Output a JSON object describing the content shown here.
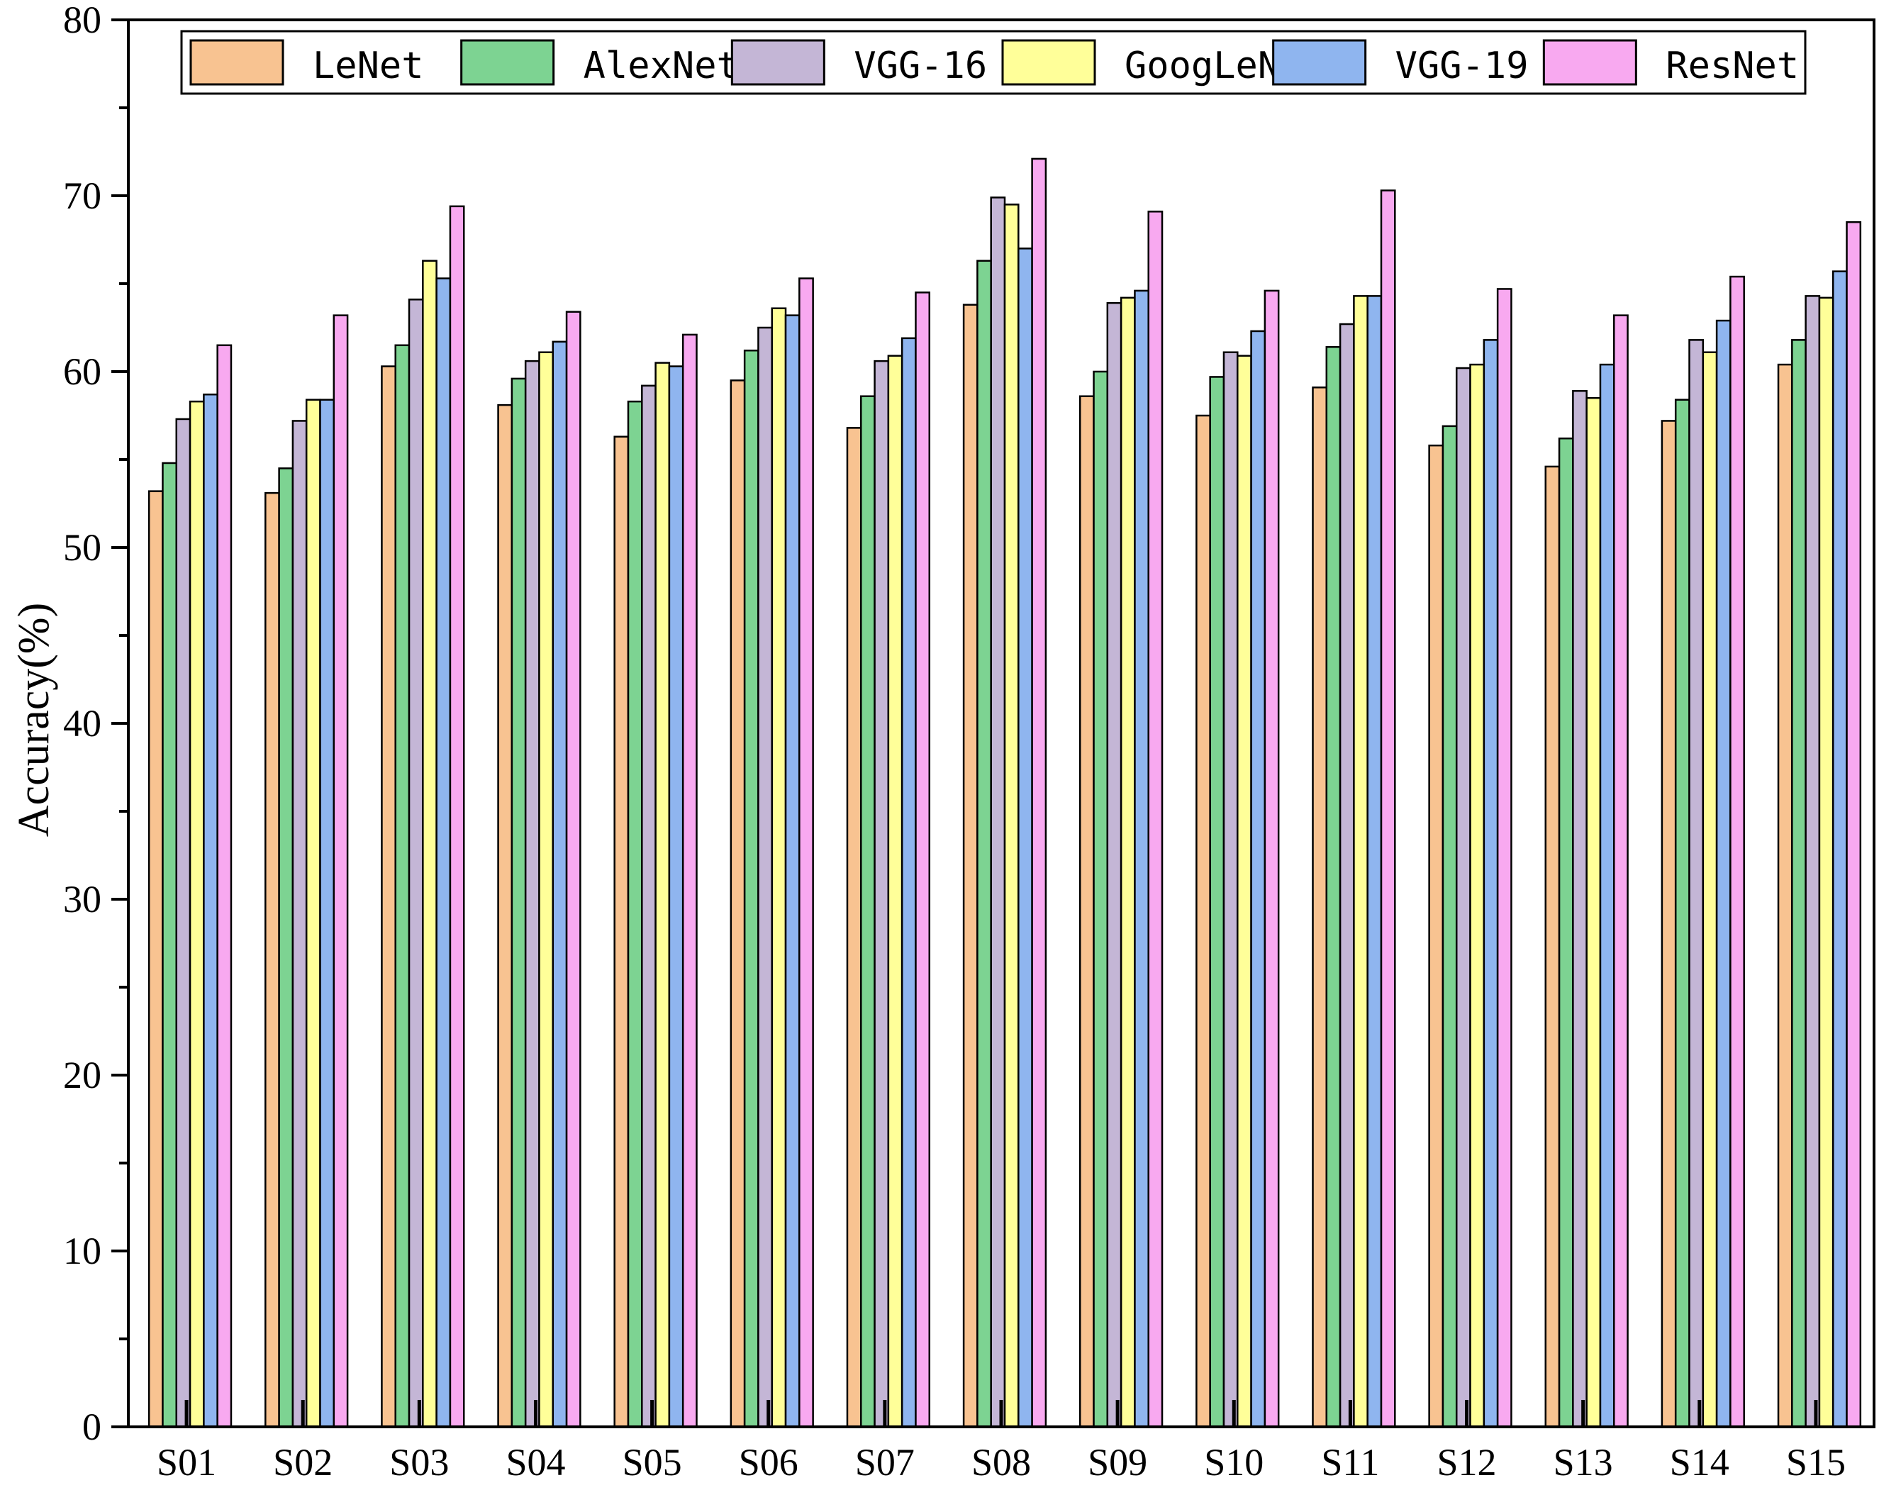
{
  "chart_data": {
    "type": "bar",
    "title": "",
    "xlabel": "",
    "ylabel": "Accuracy(%)",
    "ylim": [
      0,
      80
    ],
    "yticks": [
      "0",
      "10",
      "20",
      "30",
      "40",
      "50",
      "60",
      "70",
      "80"
    ],
    "grid": false,
    "legend_position": "top",
    "categories": [
      "S01",
      "S02",
      "S03",
      "S04",
      "S05",
      "S06",
      "S07",
      "S08",
      "S09",
      "S10",
      "S11",
      "S12",
      "S13",
      "S14",
      "S15"
    ],
    "series": [
      {
        "name": "LeNet",
        "color": "#f8c391",
        "values": [
          53.2,
          53.1,
          60.3,
          58.1,
          56.3,
          59.5,
          56.8,
          63.8,
          58.6,
          57.5,
          59.1,
          55.8,
          54.6,
          57.2,
          60.4
        ]
      },
      {
        "name": "AlexNet",
        "color": "#7dd392",
        "values": [
          54.8,
          54.5,
          61.5,
          59.6,
          58.3,
          61.2,
          58.6,
          66.3,
          60.0,
          59.7,
          61.4,
          56.9,
          56.2,
          58.4,
          61.8
        ]
      },
      {
        "name": "VGG-16",
        "color": "#c4b6d6",
        "values": [
          57.3,
          57.2,
          64.1,
          60.6,
          59.2,
          62.5,
          60.6,
          69.9,
          63.9,
          61.1,
          62.7,
          60.2,
          58.9,
          61.8,
          64.3
        ]
      },
      {
        "name": "GoogLeNet",
        "color": "#ffff99",
        "values": [
          58.3,
          58.4,
          66.3,
          61.1,
          60.5,
          63.6,
          60.9,
          69.5,
          64.2,
          60.9,
          64.3,
          60.4,
          58.5,
          61.1,
          64.2
        ]
      },
      {
        "name": "VGG-19",
        "color": "#8fb5ef",
        "values": [
          58.7,
          58.4,
          65.3,
          61.7,
          60.3,
          63.2,
          61.9,
          67.0,
          64.6,
          62.3,
          64.3,
          61.8,
          60.4,
          62.9,
          65.7
        ]
      },
      {
        "name": "ResNet",
        "color": "#f8a9f0",
        "values": [
          61.5,
          63.2,
          69.4,
          63.4,
          62.1,
          65.3,
          64.5,
          72.1,
          69.1,
          64.6,
          70.3,
          64.7,
          63.2,
          65.4,
          68.5
        ]
      }
    ]
  }
}
